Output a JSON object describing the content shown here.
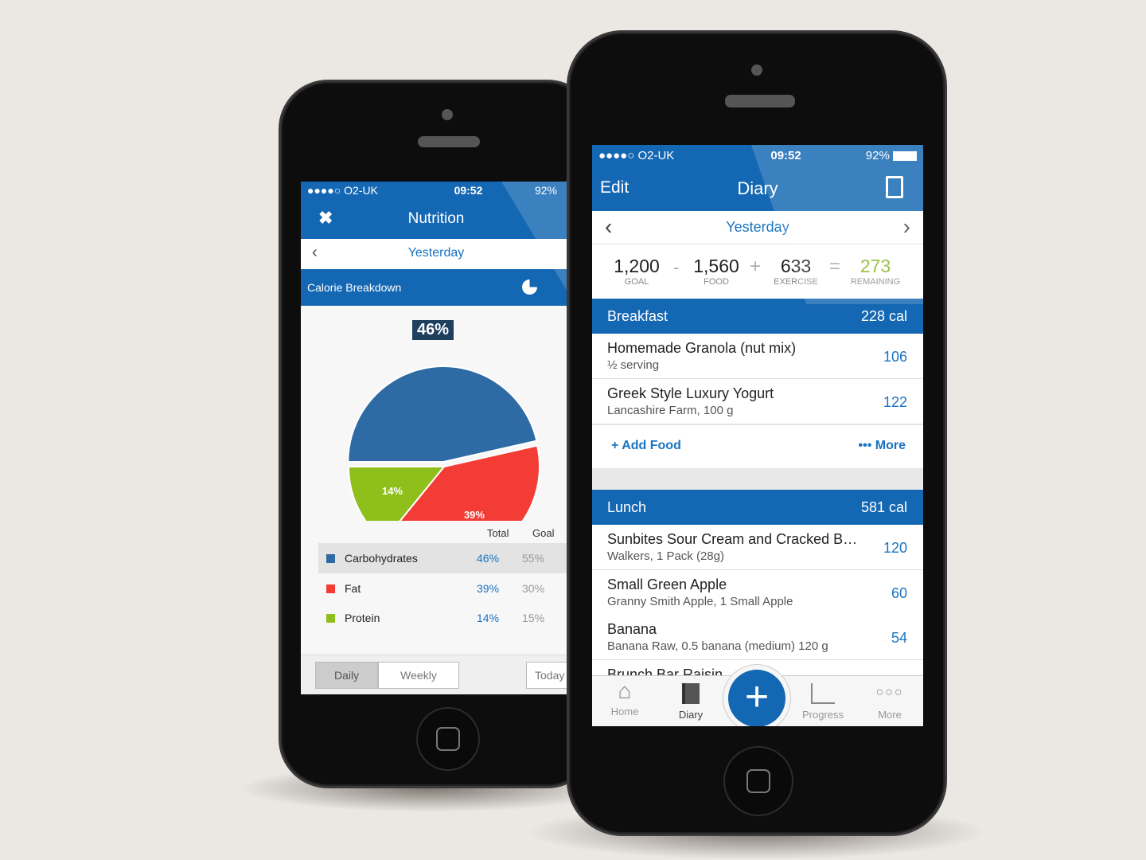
{
  "nutrition_screen": {
    "status": {
      "carrier": "●●●●○ O2-UK",
      "time": "09:52",
      "battery": "92%"
    },
    "title": "Nutrition",
    "close_icon": "x-icon",
    "date": "Yesterday",
    "section_title": "Calorie Breakdown",
    "section_icon": "pie-chart-icon",
    "highlight_label": "46%",
    "table_headers": {
      "total": "Total",
      "goal": "Goal"
    },
    "rows": [
      {
        "name": "Carbohydrates",
        "total": "46%",
        "goal": "55%",
        "color": "#2e6aa3"
      },
      {
        "name": "Fat",
        "total": "39%",
        "goal": "30%",
        "color": "#f23c35"
      },
      {
        "name": "Protein",
        "total": "14%",
        "goal": "15%",
        "color": "#8fbf1b"
      }
    ],
    "segments": {
      "daily": "Daily",
      "weekly": "Weekly"
    },
    "today_button": "Today"
  },
  "chart_data": {
    "type": "pie",
    "categories": [
      "Carbohydrates",
      "Fat",
      "Protein"
    ],
    "values": [
      46,
      39,
      14
    ],
    "labels": [
      "46%",
      "39%",
      "14%"
    ],
    "colors": [
      "#2e6aa3",
      "#f23c35",
      "#8fbf1b"
    ]
  },
  "diary_screen": {
    "status": {
      "carrier": "●●●●○ O2-UK",
      "time": "09:52",
      "battery": "92%"
    },
    "edit": "Edit",
    "title": "Diary",
    "date": "Yesterday",
    "summary": {
      "goal": "1,200",
      "goal_label": "GOAL",
      "minus": "-",
      "food": "1,560",
      "food_label": "FOOD",
      "plus": "+",
      "exercise": "633",
      "exercise_label": "EXERCISE",
      "equals": "=",
      "remaining": "273",
      "remaining_label": "REMAINING"
    },
    "breakfast": {
      "title": "Breakfast",
      "calories": "228 cal",
      "items": [
        {
          "name": "Homemade Granola (nut mix)",
          "detail": "½ serving",
          "calories": "106"
        },
        {
          "name": "Greek Style Luxury Yogurt",
          "detail": "Lancashire Farm, 100 g",
          "calories": "122"
        }
      ],
      "add_food": "+ Add Food",
      "more": "••• More"
    },
    "lunch": {
      "title": "Lunch",
      "calories": "581 cal",
      "items": [
        {
          "name": "Sunbites Sour Cream and Cracked B…",
          "detail": "Walkers, 1 Pack (28g)",
          "calories": "120"
        },
        {
          "name": "Small Green Apple",
          "detail": "Granny Smith Apple, 1 Small Apple",
          "calories": "60"
        },
        {
          "name": "Banana",
          "detail": "Banana Raw, 0.5 banana (medium) 120 g",
          "calories": "54"
        },
        {
          "name": "Brunch Bar Raisin",
          "detail": "",
          "calories": ""
        }
      ]
    },
    "tabs": [
      {
        "label": "Home",
        "icon": "home-icon"
      },
      {
        "label": "Diary",
        "icon": "book-icon"
      },
      {
        "label": "",
        "icon": "plus-icon"
      },
      {
        "label": "Progress",
        "icon": "chart-line-icon"
      },
      {
        "label": "More",
        "icon": "more-dots-icon"
      }
    ]
  }
}
